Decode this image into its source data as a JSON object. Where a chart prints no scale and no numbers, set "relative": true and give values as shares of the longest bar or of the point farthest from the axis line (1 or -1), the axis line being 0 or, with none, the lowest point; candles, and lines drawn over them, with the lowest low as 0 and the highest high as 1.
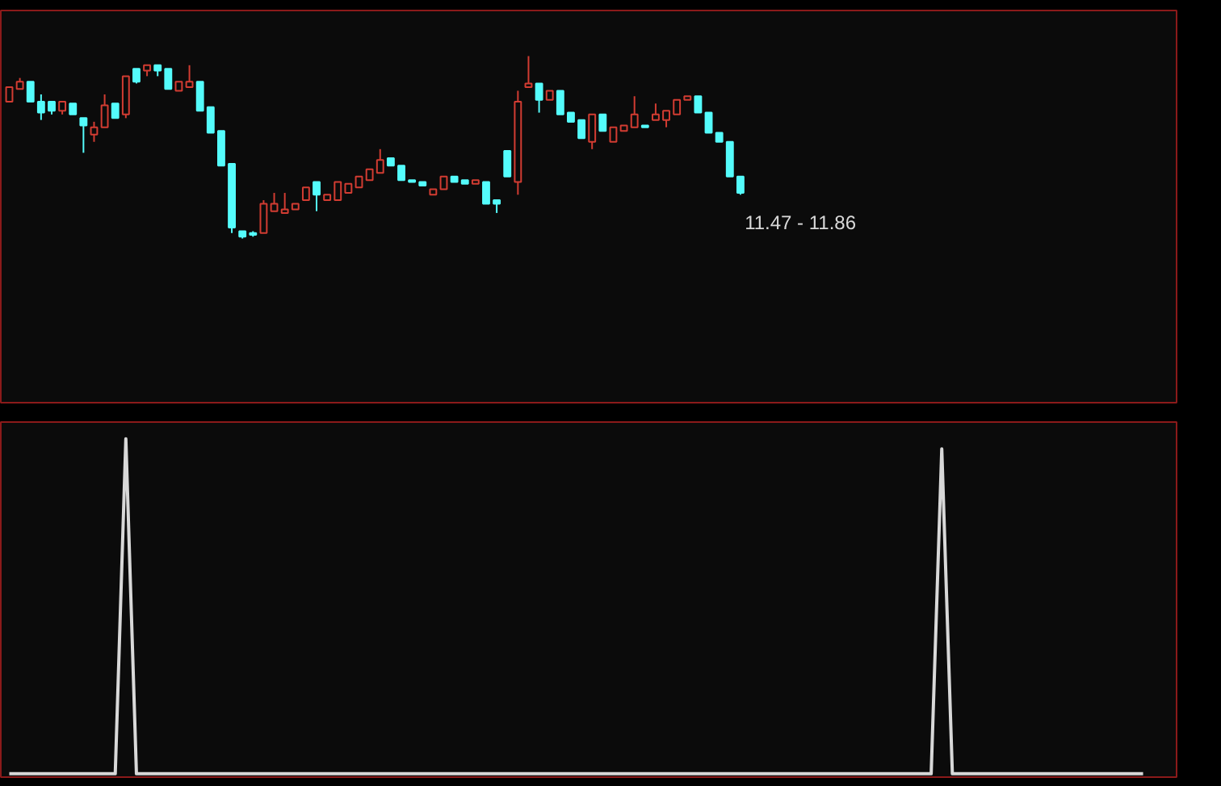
{
  "chart_data": [
    {
      "type": "candlestick",
      "relative": true,
      "annotations": [
        "11.47 - 11.86"
      ],
      "categories": [
        null,
        null,
        null,
        null,
        null,
        null,
        null,
        null,
        null,
        null,
        null,
        null,
        null,
        null,
        null,
        null,
        null,
        null,
        null,
        null,
        null,
        null,
        null,
        null,
        null,
        null,
        null,
        null,
        null,
        null,
        null,
        null,
        null,
        null,
        null,
        null,
        null,
        null,
        null,
        null,
        null,
        null,
        null,
        null,
        null,
        null,
        null,
        null,
        null,
        null,
        null,
        null,
        null,
        null,
        null,
        null,
        null,
        null,
        null,
        null,
        null,
        null,
        null,
        null,
        null,
        null,
        null,
        null,
        null,
        null
      ],
      "ohlc": [
        [
          0.75,
          0.83,
          0.75,
          0.83
        ],
        [
          0.82,
          0.88,
          0.82,
          0.86
        ],
        [
          0.86,
          0.86,
          0.75,
          0.75
        ],
        [
          0.75,
          0.79,
          0.65,
          0.69
        ],
        [
          0.75,
          0.75,
          0.68,
          0.7
        ],
        [
          0.7,
          0.75,
          0.68,
          0.75
        ],
        [
          0.74,
          0.74,
          0.68,
          0.68
        ],
        [
          0.66,
          0.66,
          0.47,
          0.62
        ],
        [
          0.57,
          0.64,
          0.53,
          0.61
        ],
        [
          0.61,
          0.79,
          0.61,
          0.73
        ],
        [
          0.74,
          0.74,
          0.66,
          0.66
        ],
        [
          0.68,
          0.89,
          0.66,
          0.89
        ],
        [
          0.93,
          0.93,
          0.85,
          0.86
        ],
        [
          0.92,
          0.95,
          0.89,
          0.95
        ],
        [
          0.95,
          0.95,
          0.89,
          0.92
        ],
        [
          0.93,
          0.93,
          0.82,
          0.82
        ],
        [
          0.81,
          0.86,
          0.81,
          0.86
        ],
        [
          0.83,
          0.95,
          0.83,
          0.86
        ],
        [
          0.86,
          0.86,
          0.7,
          0.7
        ],
        [
          0.72,
          0.72,
          0.58,
          0.58
        ],
        [
          0.59,
          0.59,
          0.4,
          0.4
        ],
        [
          0.41,
          0.41,
          0.03,
          0.06
        ],
        [
          0.04,
          0.04,
          0.0,
          0.01
        ],
        [
          0.03,
          0.04,
          0.01,
          0.02
        ],
        [
          0.03,
          0.21,
          0.03,
          0.19
        ],
        [
          0.15,
          0.25,
          0.15,
          0.19
        ],
        [
          0.14,
          0.25,
          0.14,
          0.16
        ],
        [
          0.16,
          0.19,
          0.16,
          0.19
        ],
        [
          0.21,
          0.28,
          0.21,
          0.28
        ],
        [
          0.31,
          0.31,
          0.15,
          0.24
        ],
        [
          0.21,
          0.24,
          0.21,
          0.24
        ],
        [
          0.21,
          0.31,
          0.21,
          0.31
        ],
        [
          0.25,
          0.3,
          0.25,
          0.3
        ],
        [
          0.28,
          0.34,
          0.28,
          0.34
        ],
        [
          0.32,
          0.38,
          0.32,
          0.38
        ],
        [
          0.36,
          0.49,
          0.36,
          0.43
        ],
        [
          0.44,
          0.44,
          0.4,
          0.4
        ],
        [
          0.4,
          0.4,
          0.32,
          0.32
        ],
        [
          0.32,
          0.32,
          0.31,
          0.31
        ],
        [
          0.31,
          0.31,
          0.29,
          0.29
        ],
        [
          0.24,
          0.27,
          0.24,
          0.27
        ],
        [
          0.27,
          0.34,
          0.27,
          0.34
        ],
        [
          0.34,
          0.34,
          0.31,
          0.31
        ],
        [
          0.32,
          0.32,
          0.3,
          0.3
        ],
        [
          0.3,
          0.32,
          0.3,
          0.32
        ],
        [
          0.31,
          0.31,
          0.19,
          0.19
        ],
        [
          0.21,
          0.21,
          0.14,
          0.19
        ],
        [
          0.48,
          0.48,
          0.34,
          0.34
        ],
        [
          0.31,
          0.81,
          0.24,
          0.75
        ],
        [
          0.83,
          1.0,
          0.83,
          0.85
        ],
        [
          0.85,
          0.85,
          0.69,
          0.76
        ],
        [
          0.76,
          0.81,
          0.76,
          0.81
        ],
        [
          0.81,
          0.81,
          0.68,
          0.68
        ],
        [
          0.69,
          0.69,
          0.64,
          0.64
        ],
        [
          0.65,
          0.65,
          0.55,
          0.55
        ],
        [
          0.53,
          0.68,
          0.49,
          0.68
        ],
        [
          0.68,
          0.68,
          0.59,
          0.59
        ],
        [
          0.53,
          0.61,
          0.53,
          0.61
        ],
        [
          0.59,
          0.62,
          0.59,
          0.62
        ],
        [
          0.61,
          0.78,
          0.61,
          0.68
        ],
        [
          0.62,
          0.62,
          0.61,
          0.61
        ],
        [
          0.65,
          0.74,
          0.65,
          0.68
        ],
        [
          0.65,
          0.7,
          0.61,
          0.7
        ],
        [
          0.68,
          0.76,
          0.68,
          0.76
        ],
        [
          0.76,
          0.78,
          0.76,
          0.78
        ],
        [
          0.78,
          0.78,
          0.69,
          0.69
        ],
        [
          0.69,
          0.69,
          0.58,
          0.58
        ],
        [
          0.58,
          0.58,
          0.53,
          0.53
        ],
        [
          0.53,
          0.53,
          0.34,
          0.34
        ],
        [
          0.34,
          0.34,
          0.24,
          0.25
        ]
      ]
    },
    {
      "type": "line",
      "relative": true,
      "marker": "none",
      "categories": [
        null,
        null,
        null,
        null,
        null,
        null,
        null,
        null,
        null,
        null,
        null,
        null,
        null,
        null,
        null,
        null,
        null,
        null,
        null,
        null,
        null,
        null,
        null,
        null,
        null,
        null,
        null,
        null,
        null,
        null,
        null,
        null,
        null,
        null,
        null,
        null,
        null,
        null,
        null,
        null,
        null,
        null,
        null,
        null,
        null,
        null,
        null,
        null,
        null,
        null,
        null,
        null,
        null,
        null,
        null,
        null,
        null,
        null,
        null,
        null,
        null,
        null,
        null,
        null,
        null,
        null,
        null,
        null,
        null,
        null,
        null,
        null,
        null,
        null,
        null,
        null,
        null,
        null,
        null,
        null,
        null,
        null,
        null,
        null,
        null,
        null,
        null,
        null,
        null,
        null,
        null,
        null,
        null,
        null,
        null,
        null,
        null,
        null,
        null,
        null,
        null,
        null,
        null,
        null,
        null,
        null,
        null,
        null
      ],
      "series": [
        {
          "color": "#d8d8d8",
          "values": [
            0,
            0,
            0,
            0,
            0,
            0,
            0,
            0,
            0,
            0,
            0,
            1,
            0,
            0,
            0,
            0,
            0,
            0,
            0,
            0,
            0,
            0,
            0,
            0,
            0,
            0,
            0,
            0,
            0,
            0,
            0,
            0,
            0,
            0,
            0,
            0,
            0,
            0,
            0,
            0,
            0,
            0,
            0,
            0,
            0,
            0,
            0,
            0,
            0,
            0,
            0,
            0,
            0,
            0,
            0,
            0,
            0,
            0,
            0,
            0,
            0,
            0,
            0,
            0,
            0,
            0,
            0,
            0,
            0,
            0,
            0,
            0,
            0,
            0,
            0,
            0,
            0,
            0,
            0,
            0,
            0,
            0,
            0,
            0,
            0,
            0,
            0,
            0,
            0.97,
            0,
            0,
            0,
            0,
            0,
            0,
            0,
            0,
            0,
            0,
            0,
            0,
            0,
            0,
            0,
            0,
            0,
            0,
            0
          ]
        }
      ]
    }
  ]
}
